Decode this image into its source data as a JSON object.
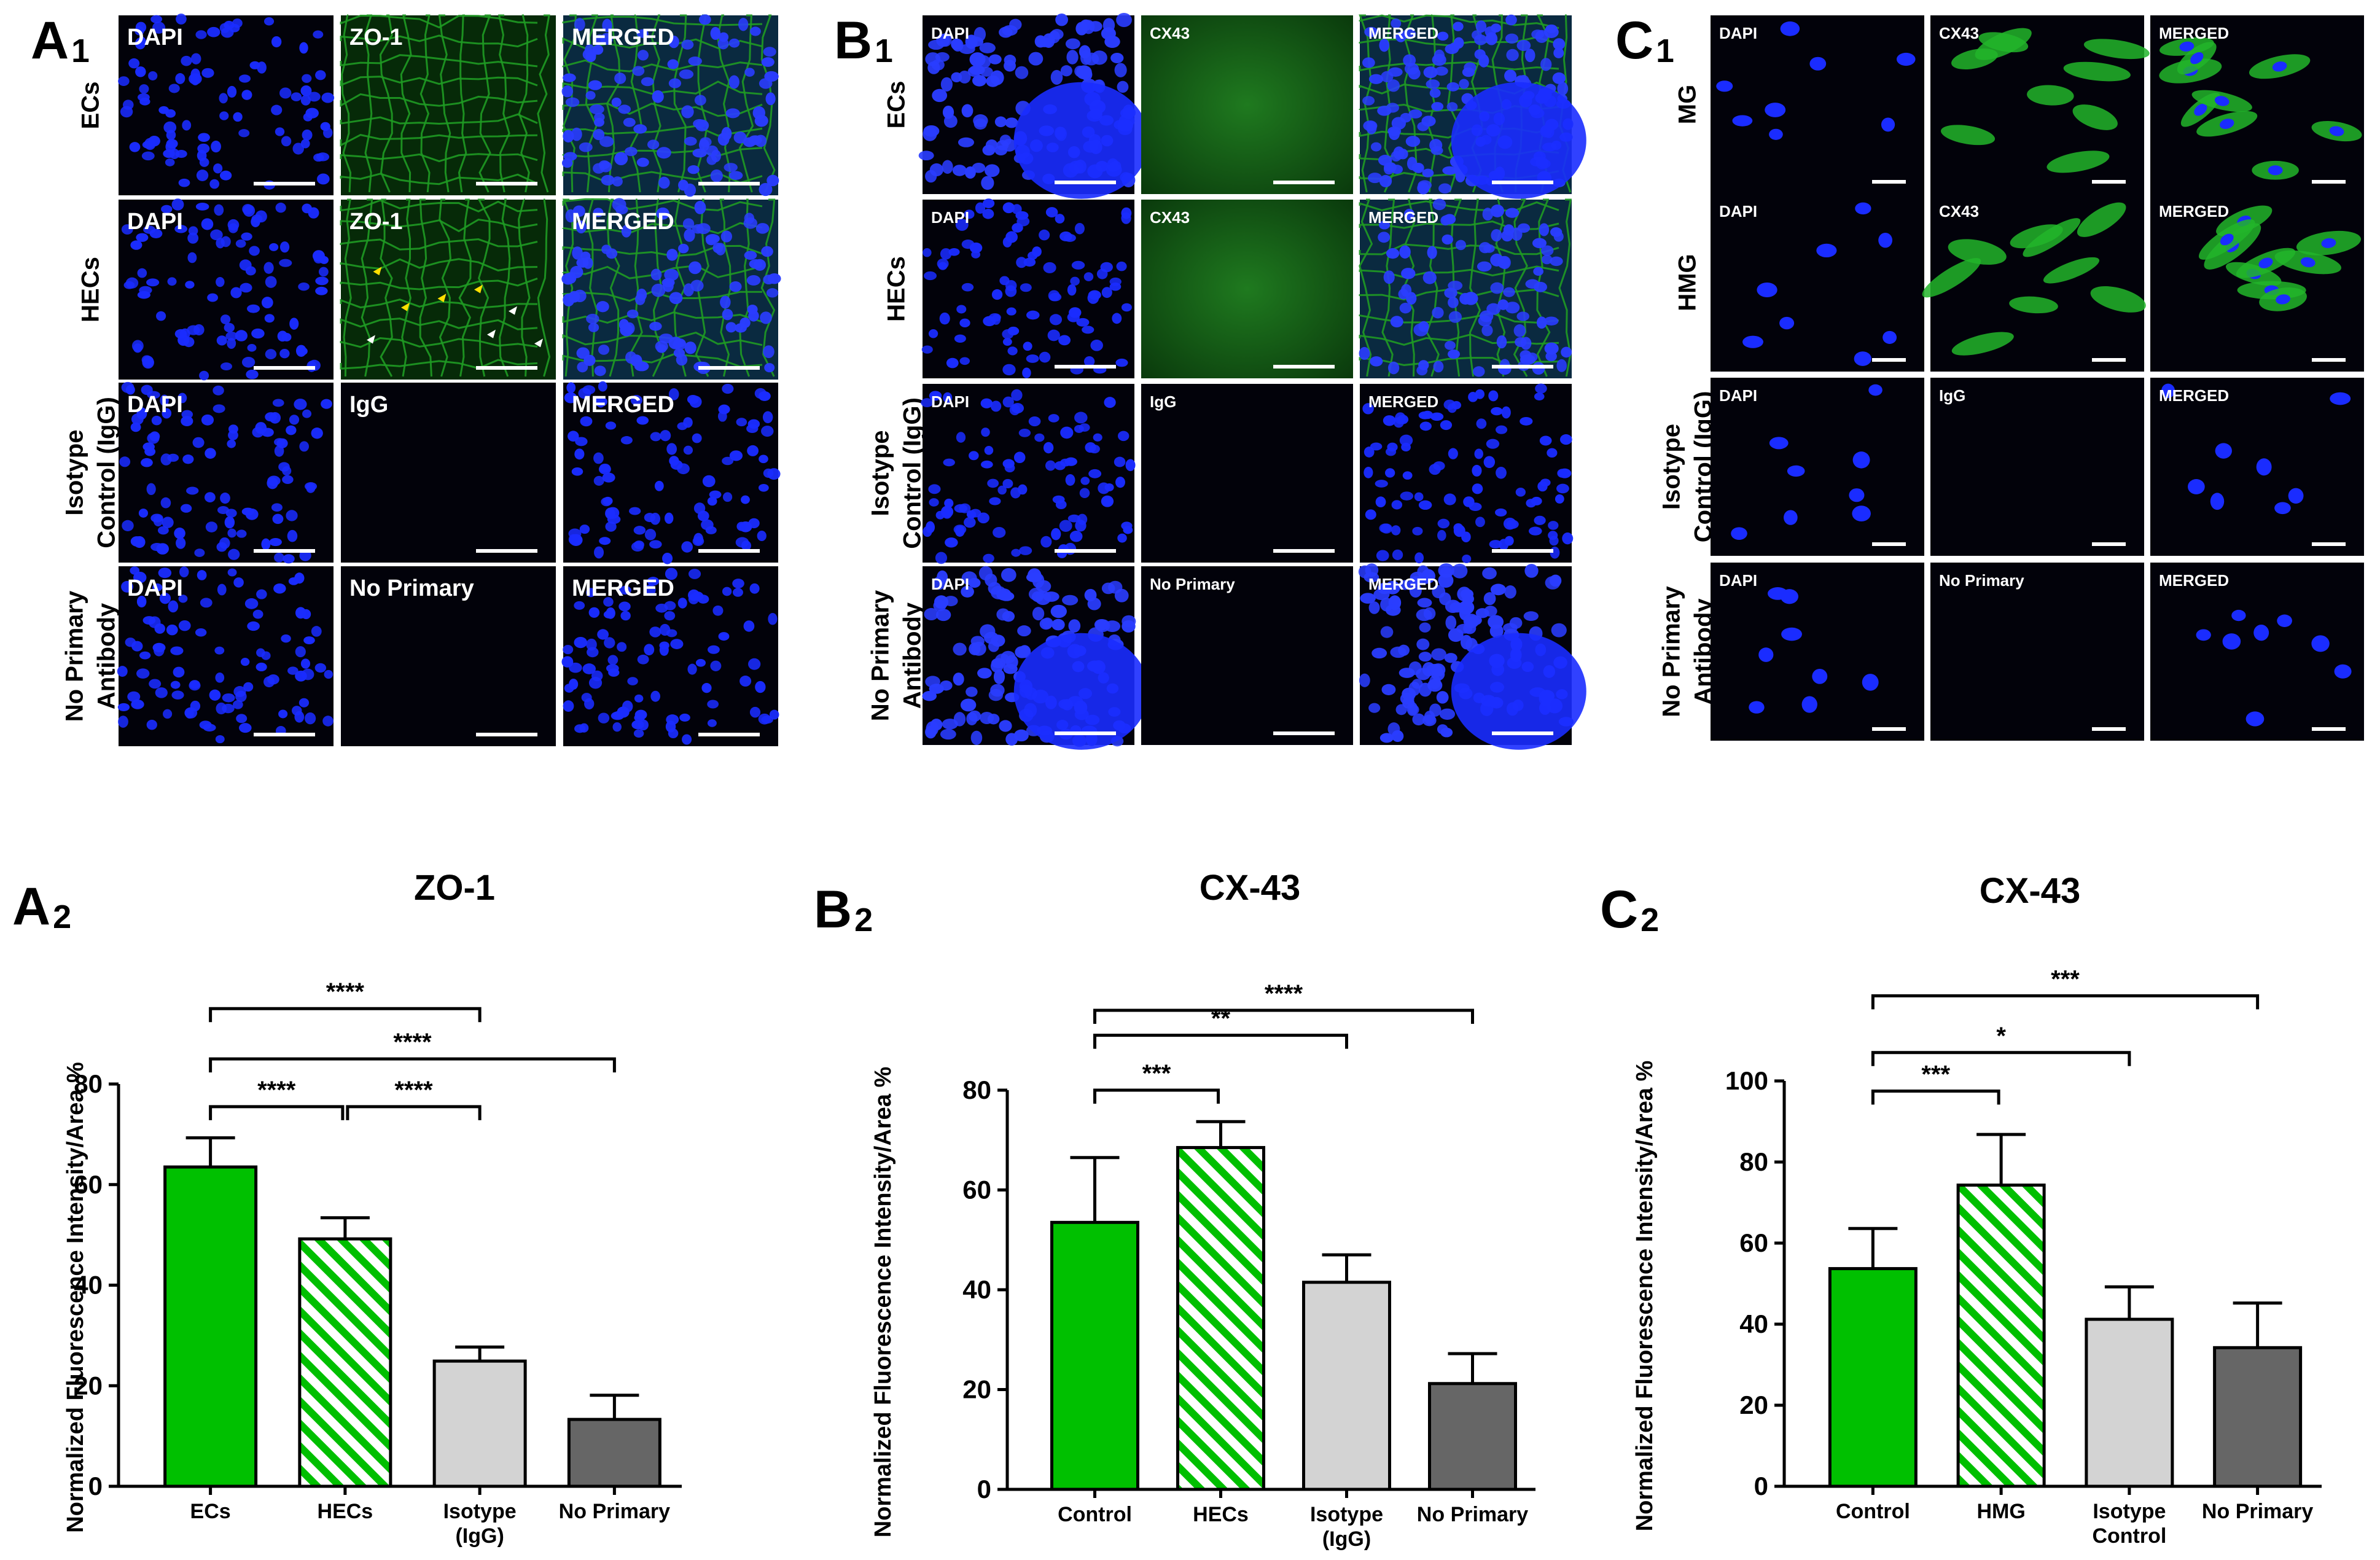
{
  "colors": {
    "green": "#00c000",
    "hatch_green": "#00bf00",
    "light_gray": "#d3d3d3",
    "dark_gray": "#666666",
    "nuclei_blue": "#1a2cff",
    "tile_bg": "#02020a",
    "membrane_green": "#1f9a24"
  },
  "micrographs": [
    {
      "id": "A1",
      "letter": "A",
      "sub": "1",
      "columns": [
        "DAPI",
        "ZO-1",
        "MERGED"
      ],
      "rows": [
        {
          "label": [
            "ECs"
          ],
          "tiles": [
            "DAPI",
            "ZO-1",
            "MERGED"
          ],
          "content": [
            "nuclei",
            "membrane",
            "merged"
          ]
        },
        {
          "label": [
            "HECs"
          ],
          "tiles": [
            "DAPI",
            "ZO-1",
            "MERGED"
          ],
          "content": [
            "nuclei",
            "membrane-arrows",
            "merged"
          ]
        },
        {
          "label": [
            "Isotype",
            "Control (IgG)"
          ],
          "tiles": [
            "DAPI",
            "IgG",
            "MERGED"
          ],
          "content": [
            "nuclei",
            "dark",
            "nuclei"
          ]
        },
        {
          "label": [
            "No Primary",
            "Antibody"
          ],
          "tiles": [
            "DAPI",
            "No Primary",
            "MERGED"
          ],
          "content": [
            "nuclei",
            "dark",
            "nuclei"
          ]
        }
      ]
    },
    {
      "id": "B1",
      "letter": "B",
      "sub": "1",
      "rows": [
        {
          "label": [
            "ECs"
          ],
          "tiles": [
            "DAPI",
            "CX43",
            "MERGED"
          ],
          "content": [
            "nuclei-dense",
            "haze",
            "merged-dense"
          ]
        },
        {
          "label": [
            "HECs"
          ],
          "tiles": [
            "DAPI",
            "CX43",
            "MERGED"
          ],
          "content": [
            "nuclei",
            "haze",
            "merged"
          ]
        },
        {
          "label": [
            "Isotype",
            "Control (IgG)"
          ],
          "tiles": [
            "DAPI",
            "IgG",
            "MERGED"
          ],
          "content": [
            "nuclei",
            "dark",
            "nuclei"
          ]
        },
        {
          "label": [
            "No Primary",
            "Antibody"
          ],
          "tiles": [
            "DAPI",
            "No Primary",
            "MERGED"
          ],
          "content": [
            "nuclei-dense",
            "dark",
            "nuclei-dense"
          ]
        }
      ]
    },
    {
      "id": "C1",
      "letter": "C",
      "sub": "1",
      "rows": [
        {
          "label": [
            "MG"
          ],
          "tiles": [
            "DAPI",
            "CX43",
            "MERGED"
          ],
          "content": [
            "sparse",
            "cells",
            "merged-cells"
          ]
        },
        {
          "label": [
            "HMG"
          ],
          "tiles": [
            "DAPI",
            "CX43",
            "MERGED"
          ],
          "content": [
            "sparse",
            "cells",
            "merged-cells"
          ]
        },
        {
          "label": [
            "Isotype",
            "Control (IgG)"
          ],
          "tiles": [
            "DAPI",
            "IgG",
            "MERGED"
          ],
          "content": [
            "sparse",
            "dark",
            "sparse"
          ]
        },
        {
          "label": [
            "No Primary",
            "Antibody"
          ],
          "tiles": [
            "DAPI",
            "No Primary",
            "MERGED"
          ],
          "content": [
            "sparse",
            "dark",
            "sparse"
          ]
        }
      ]
    }
  ],
  "chart_data": [
    {
      "id": "A2",
      "letter": "A",
      "sub": "2",
      "type": "bar",
      "title": "ZO-1",
      "ylabel": "Normalized Fluorescence Intensity/Area %",
      "ylim": [
        0,
        80
      ],
      "yticks": [
        0,
        20,
        40,
        60,
        80
      ],
      "categories": [
        [
          "ECs"
        ],
        [
          "HECs"
        ],
        [
          "Isotype",
          "(IgG)"
        ],
        [
          "No Primary"
        ]
      ],
      "values": [
        63.5,
        49.2,
        24.9,
        13.3
      ],
      "errors": [
        5.8,
        4.2,
        2.8,
        4.8
      ],
      "styles": [
        "green",
        "hatch",
        "light",
        "dark"
      ],
      "significance": [
        {
          "from": 0,
          "to": 2,
          "label": "****",
          "level": 95
        },
        {
          "from": 0,
          "to": 3,
          "label": "****",
          "level": 85
        },
        {
          "from": 0,
          "to": 1,
          "label": "****",
          "level": 75.5
        },
        {
          "from": 1,
          "to": 2,
          "label": "****",
          "level": 75.5
        }
      ]
    },
    {
      "id": "B2",
      "letter": "B",
      "sub": "2",
      "type": "bar",
      "title": "CX-43",
      "ylabel": "Normalized Fluorescence Intensity/Area %",
      "ylim": [
        0,
        80
      ],
      "yticks": [
        0,
        20,
        40,
        60,
        80
      ],
      "categories": [
        [
          "Control"
        ],
        [
          "HECs"
        ],
        [
          "Isotype",
          "(IgG)"
        ],
        [
          "No Primary"
        ]
      ],
      "values": [
        53.5,
        68.5,
        41.5,
        21.2
      ],
      "errors": [
        13.0,
        5.2,
        5.5,
        6.0
      ],
      "styles": [
        "green",
        "hatch",
        "light",
        "dark"
      ],
      "significance": [
        {
          "from": 0,
          "to": 3,
          "label": "****",
          "level": 96
        },
        {
          "from": 0,
          "to": 2,
          "label": "**",
          "level": 91
        },
        {
          "from": 0,
          "to": 1,
          "label": "***",
          "level": 80
        }
      ]
    },
    {
      "id": "C2",
      "letter": "C",
      "sub": "2",
      "type": "bar",
      "title": "CX-43",
      "ylabel": "Normalized Fluorescence Intensity/Area %",
      "ylim": [
        0,
        100
      ],
      "yticks": [
        0,
        20,
        40,
        60,
        80,
        100
      ],
      "categories": [
        [
          "Control"
        ],
        [
          "HMG"
        ],
        [
          "Isotype",
          "Control"
        ],
        [
          "No Primary"
        ]
      ],
      "values": [
        53.7,
        74.3,
        41.2,
        34.2
      ],
      "errors": [
        9.9,
        12.5,
        8.0,
        11.0
      ],
      "styles": [
        "green",
        "hatch",
        "light",
        "dark"
      ],
      "significance": [
        {
          "from": 0,
          "to": 3,
          "label": "***",
          "level": 121
        },
        {
          "from": 0,
          "to": 2,
          "label": "*",
          "level": 107
        },
        {
          "from": 0,
          "to": 1,
          "label": "***",
          "level": 97.5
        }
      ]
    }
  ]
}
